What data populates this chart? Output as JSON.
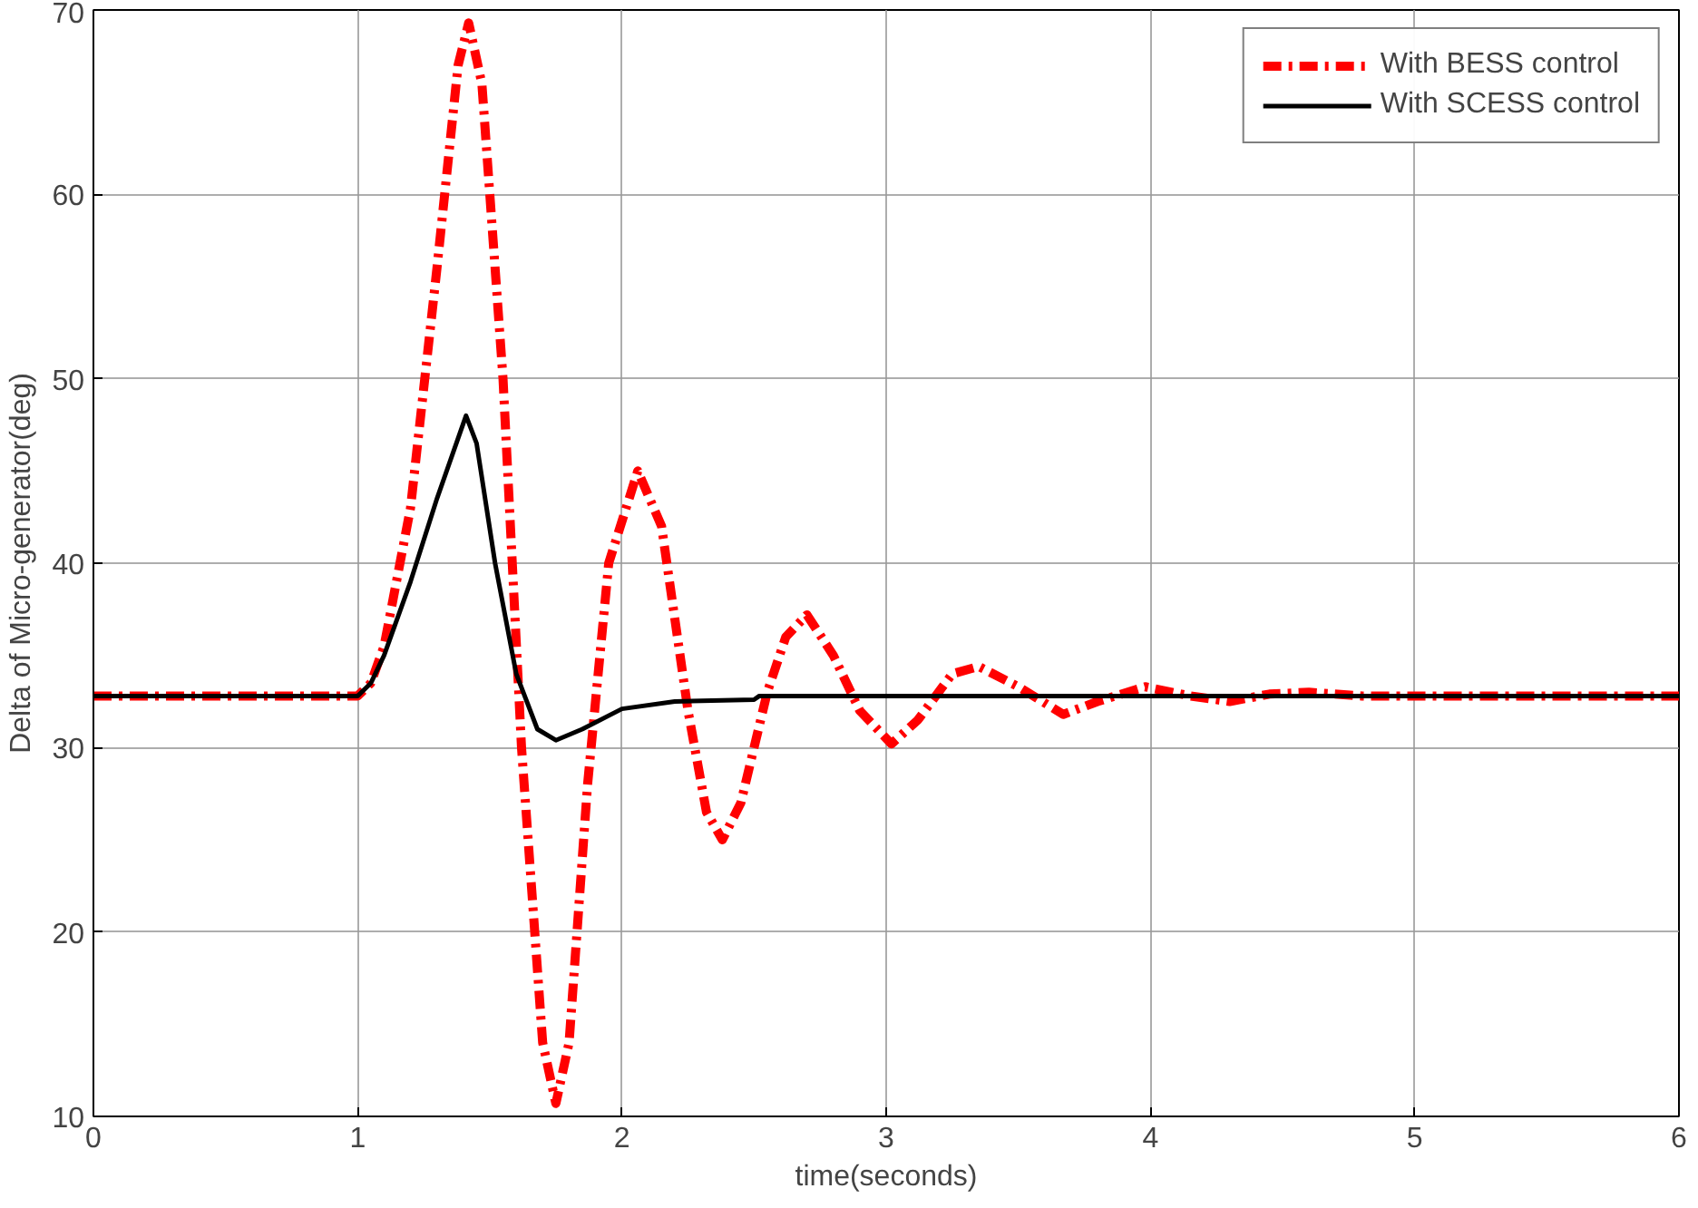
{
  "chart_data": {
    "type": "line",
    "xlabel": "time(seconds)",
    "ylabel": "Delta of Micro-generator(deg)",
    "xlim": [
      0,
      6
    ],
    "ylim": [
      10,
      70
    ],
    "xticks": [
      0,
      1,
      2,
      3,
      4,
      5,
      6
    ],
    "yticks": [
      10,
      20,
      30,
      40,
      50,
      60,
      70
    ],
    "grid": true,
    "legend": "top right",
    "series": [
      {
        "name": "With BESS control",
        "color": "#ff0000",
        "line_style": "dashdot",
        "x": [
          0,
          1.0,
          1.05,
          1.1,
          1.2,
          1.3,
          1.38,
          1.42,
          1.47,
          1.55,
          1.62,
          1.7,
          1.75,
          1.8,
          1.87,
          1.95,
          2.06,
          2.15,
          2.25,
          2.32,
          2.38,
          2.45,
          2.55,
          2.62,
          2.7,
          2.8,
          2.9,
          3.02,
          3.12,
          3.25,
          3.35,
          3.5,
          3.67,
          3.8,
          3.98,
          4.15,
          4.3,
          4.45,
          4.6,
          4.8,
          6
        ],
        "values": [
          32.8,
          32.8,
          33.5,
          35.5,
          43,
          56,
          67,
          69.3,
          66,
          50,
          30,
          14,
          10.7,
          14,
          28,
          40,
          45.0,
          42,
          32,
          26.5,
          25.0,
          27,
          33,
          36,
          37.2,
          35,
          32,
          30.2,
          31.5,
          34,
          34.4,
          33.3,
          31.8,
          32.5,
          33.3,
          32.8,
          32.5,
          32.9,
          33.0,
          32.8,
          32.8
        ]
      },
      {
        "name": "With SCESS control",
        "color": "#000000",
        "line_style": "solid",
        "x": [
          0,
          1.0,
          1.05,
          1.1,
          1.2,
          1.3,
          1.41,
          1.45,
          1.52,
          1.6,
          1.68,
          1.75,
          1.85,
          2.0,
          2.2,
          2.5,
          2.52,
          6
        ],
        "values": [
          32.8,
          32.8,
          33.5,
          35,
          39,
          43.5,
          48,
          46.5,
          40,
          34,
          31,
          30.4,
          31,
          32.1,
          32.5,
          32.6,
          32.8,
          32.8
        ]
      }
    ]
  }
}
